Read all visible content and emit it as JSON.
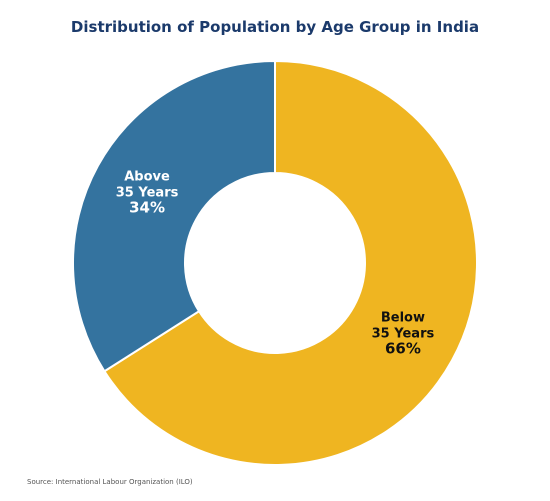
{
  "title": "Distribution of Population by Age Group in India",
  "source": "Source: International Labour Organization (ILO)",
  "chart_data": {
    "type": "pie",
    "donut": true,
    "title": "Distribution of Population by Age Group in India",
    "categories": [
      "Below 35 Years",
      "Above 35 Years"
    ],
    "values": [
      66,
      34
    ],
    "slices": [
      {
        "label_lines": [
          "Below",
          "35 Years"
        ],
        "value": 66,
        "pct_label": "66%",
        "color": "#efb521",
        "text_color": "#111111"
      },
      {
        "label_lines": [
          "Above",
          "35 Years"
        ],
        "value": 34,
        "pct_label": "34%",
        "color": "#34739f",
        "text_color": "#ffffff"
      }
    ],
    "legend": "none",
    "labels_placement": "on-slice"
  }
}
